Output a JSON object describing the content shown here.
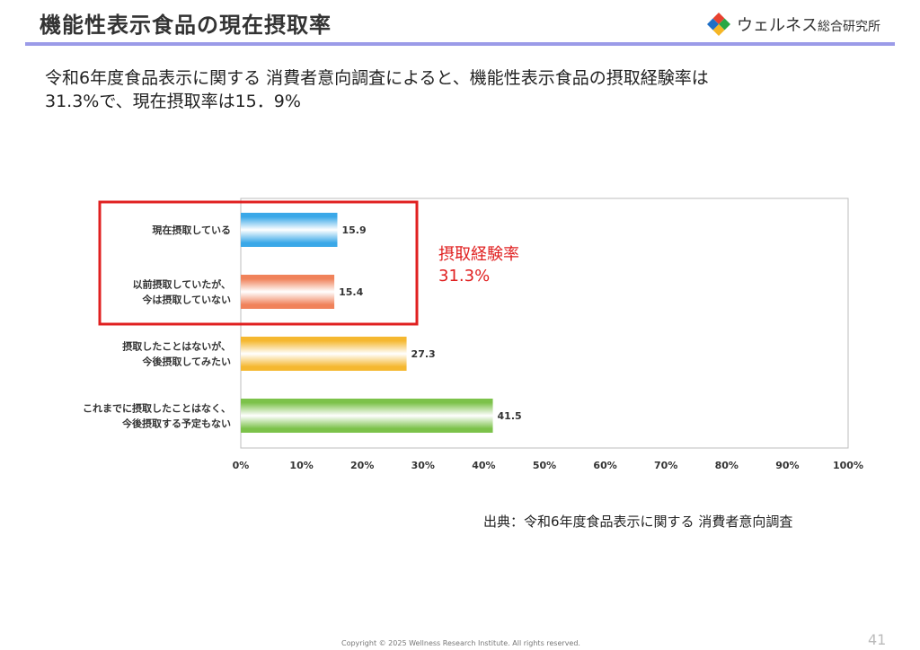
{
  "header": {
    "title": "機能性表示食品の現在摂取率",
    "brand": {
      "name_main": "ウェルネス",
      "name_sub": "総合研究所"
    }
  },
  "lead": {
    "line1": "令和6年度食品表示に関する 消費者意向調査によると、機能性表示食品の摂取経験率は",
    "line2": "31.3%で、現在摂取率は15．9%"
  },
  "annotation": {
    "label": "摂取経験率",
    "value": "31.3%",
    "color": "#e02020"
  },
  "source": "出典：令和6年度食品表示に関する 消費者意向調査",
  "footer": {
    "copyright": "Copyright © 2025 Wellness Research Institute. All rights reserved.",
    "page": "41"
  },
  "chart_data": {
    "type": "bar",
    "orientation": "horizontal",
    "categories": [
      [
        "現在摂取している"
      ],
      [
        "以前摂取していたが、",
        "今は摂取していない"
      ],
      [
        "摂取したことはないが、",
        "今後摂取してみたい"
      ],
      [
        "これまでに摂取したことはなく、",
        "今後摂取する予定もない"
      ]
    ],
    "values": [
      15.9,
      15.4,
      27.3,
      41.5
    ],
    "value_labels": [
      "15.9",
      "15.4",
      "27.3",
      "41.5"
    ],
    "bar_colors": [
      "#3aa8e8",
      "#f0825a",
      "#f5b830",
      "#7cc24a"
    ],
    "xlim": [
      0,
      100
    ],
    "xticks": [
      "0%",
      "10%",
      "20%",
      "30%",
      "40%",
      "50%",
      "60%",
      "70%",
      "80%",
      "90%",
      "100%"
    ],
    "grid": false,
    "highlight_box": {
      "categories": [
        0,
        1
      ],
      "color": "#e02020"
    }
  }
}
